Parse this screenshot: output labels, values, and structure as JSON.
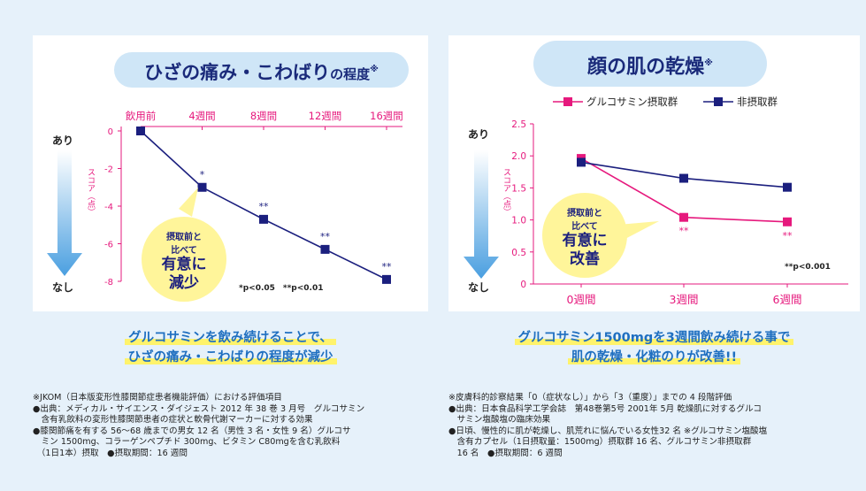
{
  "left": {
    "title_main": "ひざの痛み・こわばり",
    "title_small": "の程度",
    "title_mark": "※",
    "axis_top": "あり",
    "axis_bottom": "なし",
    "axis_unit": "スコア（点）",
    "callout": [
      "摂取前と",
      "比べて",
      "有意に",
      "減少"
    ],
    "significance_note": "*p<0.05　**p<0.01",
    "marks": [
      "",
      "*",
      "**",
      "**",
      "**"
    ],
    "caption": [
      "グルコサミンを飲み続けることで、",
      "ひざの痛み・こわばりの程度が減少"
    ],
    "notes": "※JKOM（日本版変形性膝関節症患者機能評価）における評価項目\n●出典：メディカル・サイエンス・ダイジェスト 2012 年 38 巻 3 月号　グルコサミン\n　含有乳飲料の変形性膝関節患者の症状と軟骨代謝マーカーに対する効果\n●膝関節痛を有する 56～68 歳までの男女 12 名（男性 3 名・女性 9 名）グルコサ\n　ミン 1500mg、コラーゲンペプチド 300mg、ビタミン C80mgを含む乳飲料\n　（1日1本）摂取　●摂取期間：16 週間"
  },
  "right": {
    "title_main": "顔の肌の乾燥",
    "title_mark": "※",
    "axis_top": "あり",
    "axis_bottom": "なし",
    "axis_unit": "スコア（点）",
    "callout": [
      "摂取前と",
      "比べて",
      "有意に",
      "改善"
    ],
    "significance_note": "**p<0.001",
    "marks": [
      "",
      "**",
      "**"
    ],
    "caption": [
      "グルコサミン1500mgを3週間飲み続ける事で",
      "肌の乾燥・化粧のりが改善!!"
    ],
    "notes": "※皮膚科的診察結果「0（症状なし）」から「3（重度）」までの 4 段階評価\n●出典：日本食品科学工学会誌　第48巻第5号 2001年 5月 乾燥肌に対するグルコ\n　サミン塩酸塩の臨床効果\n●日頃、慢性的に肌が乾燥し、肌荒れに悩んでいる女性32 名 ※グルコサミン塩酸塩\n　含有カプセル（1日摂取量：1500mg）摂取群 16 名、グルコサミン非摂取群\n　16 名　●摂取期間：6 週間"
  },
  "colors": {
    "navy": "#1b1f7e",
    "pink": "#e6197d",
    "arrow": "#4a9fe0",
    "caption": "#1f6fc0"
  },
  "chart_data": [
    {
      "type": "line",
      "title": "ひざの痛み・こわばりの程度※",
      "categories": [
        "飲用前",
        "4週間",
        "8週間",
        "12週間",
        "16週間"
      ],
      "yticks": [
        "0",
        "-2",
        "-4",
        "-6",
        "-8"
      ],
      "ylabel": "スコア（点）",
      "ylim": [
        -8,
        0
      ],
      "series": [
        {
          "values": [
            0,
            -3.0,
            -4.7,
            -6.3,
            -7.9
          ],
          "color": "#1b1f7e"
        }
      ]
    },
    {
      "type": "line",
      "title": "顔の肌の乾燥※",
      "categories": [
        "0週間",
        "3週間",
        "6週間"
      ],
      "yticks": [
        "0",
        "0.5",
        "1.0",
        "1.5",
        "2.0",
        "2.5"
      ],
      "ylabel": "スコア（点）",
      "ylim": [
        0,
        2.5
      ],
      "legend_position": "top",
      "series": [
        {
          "name": "グルコサミン摂取群",
          "values": [
            1.96,
            1.04,
            0.97
          ],
          "color": "#e6197d"
        },
        {
          "name": "非摂取群",
          "values": [
            1.9,
            1.65,
            1.51
          ],
          "color": "#1b1f7e"
        }
      ]
    }
  ]
}
